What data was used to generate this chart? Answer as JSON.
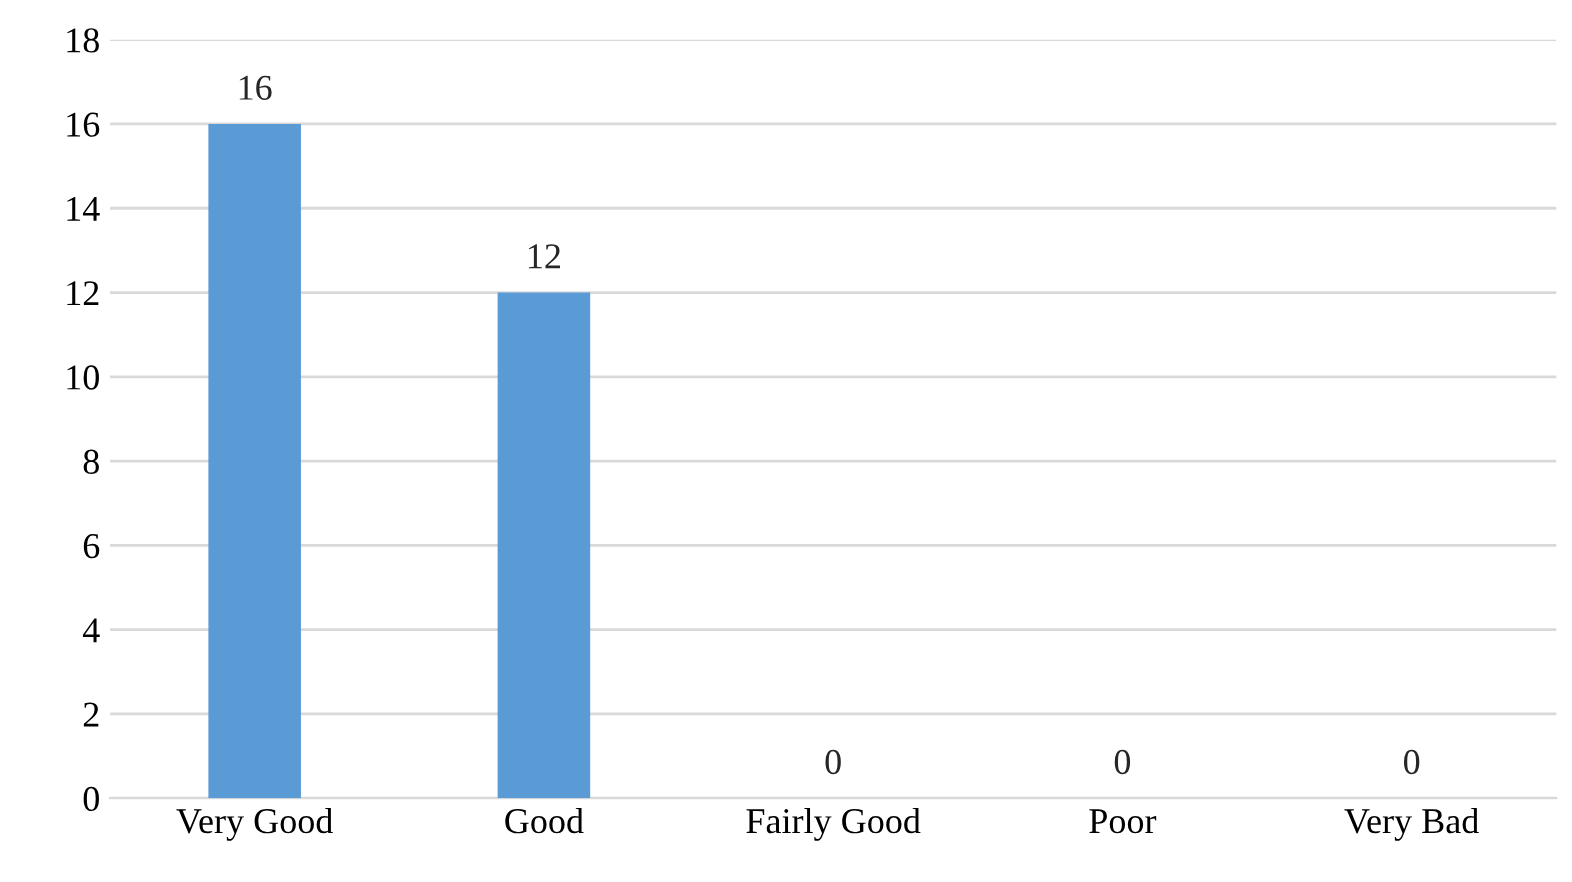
{
  "chart_data": {
    "type": "bar",
    "categories": [
      "Very Good",
      "Good",
      "Fairly Good",
      "Poor",
      "Very Bad"
    ],
    "values": [
      16,
      12,
      0,
      0,
      0
    ],
    "color": "#5b9bd5",
    "ylim": [
      0,
      18
    ],
    "yticks": [
      0,
      2,
      4,
      6,
      8,
      10,
      12,
      14,
      16,
      18
    ],
    "grid": "y",
    "data_labels": true,
    "legend": false
  }
}
